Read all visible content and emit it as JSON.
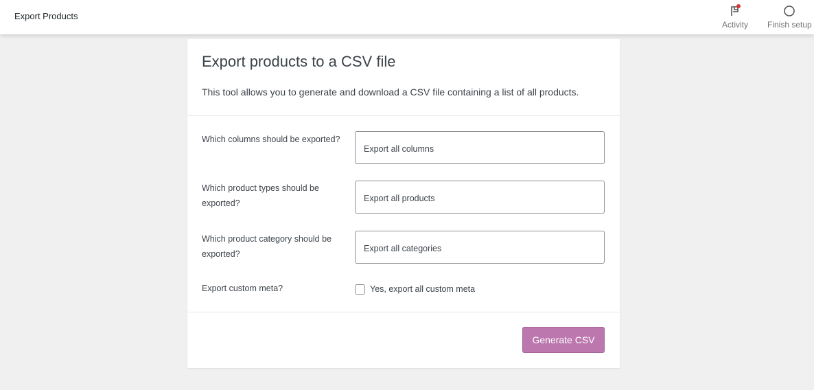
{
  "header": {
    "title": "Export Products",
    "activity": "Activity",
    "finish_setup": "Finish setup"
  },
  "card": {
    "title": "Export products to a CSV file",
    "description": "This tool allows you to generate and download a CSV file containing a list of all products.",
    "fields": [
      {
        "label": "Which columns should be exported?",
        "value": "Export all columns"
      },
      {
        "label": "Which product types should be exported?",
        "value": "Export all products"
      },
      {
        "label": "Which product category should be exported?",
        "value": "Export all categories"
      }
    ],
    "meta_label": "Export custom meta?",
    "meta_checkbox": "Yes, export all custom meta",
    "meta_checked": false,
    "button": "Generate CSV"
  },
  "colors": {
    "accent": "#bb77ae",
    "notification": "#d63638"
  }
}
